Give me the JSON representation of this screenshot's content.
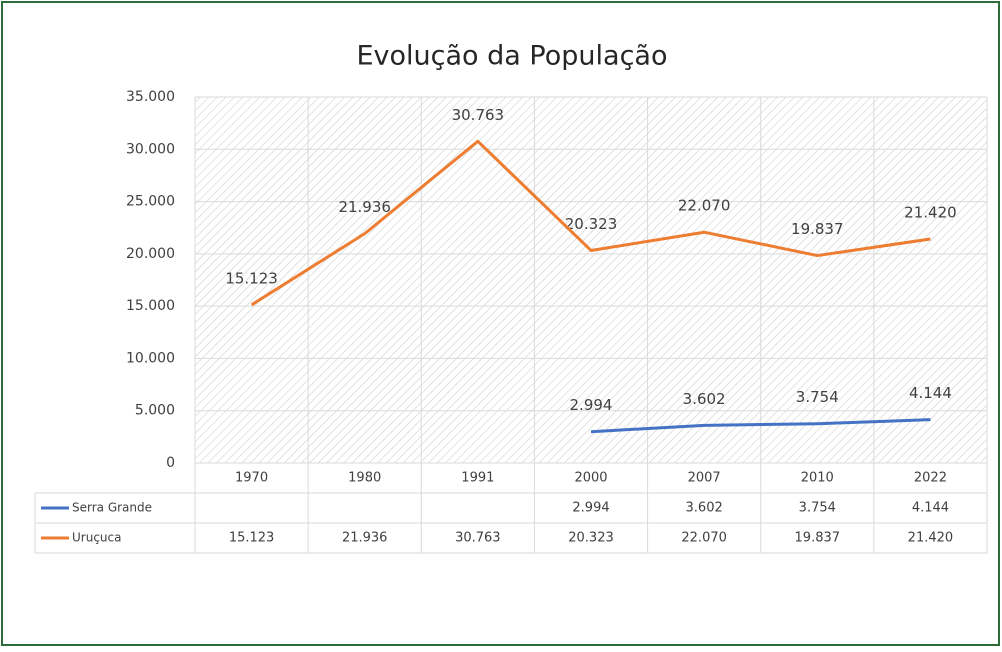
{
  "chart_data": {
    "type": "line",
    "title": "Evolução da População",
    "categories": [
      "1970",
      "1980",
      "1991",
      "2000",
      "2007",
      "2010",
      "2022"
    ],
    "series": [
      {
        "name": "Serra Grande",
        "color": "#4472c4",
        "values": [
          null,
          null,
          null,
          2994,
          3602,
          3754,
          4144
        ],
        "value_labels": [
          null,
          null,
          null,
          "2.994",
          "3.602",
          "3.754",
          "4.144"
        ]
      },
      {
        "name": "Uruçuca",
        "color": "#ed7d31",
        "values": [
          15123,
          21936,
          30763,
          20323,
          22070,
          19837,
          21420
        ],
        "value_labels": [
          "15.123",
          "21.936",
          "30.763",
          "20.323",
          "22.070",
          "19.837",
          "21.420"
        ]
      }
    ],
    "ylim": [
      0,
      35000
    ],
    "yticks": [
      0,
      {
        "value": 5000,
        "label": "5.000"
      },
      {
        "value": 10000,
        "label": "10.000"
      },
      {
        "value": 15000,
        "label": "15.000"
      },
      {
        "value": 20000,
        "label": "20.000"
      },
      {
        "value": 25000,
        "label": "25.000"
      },
      {
        "value": 30000,
        "label": "30.000"
      },
      {
        "value": 35000,
        "label": "35.000"
      }
    ],
    "grid": true
  }
}
